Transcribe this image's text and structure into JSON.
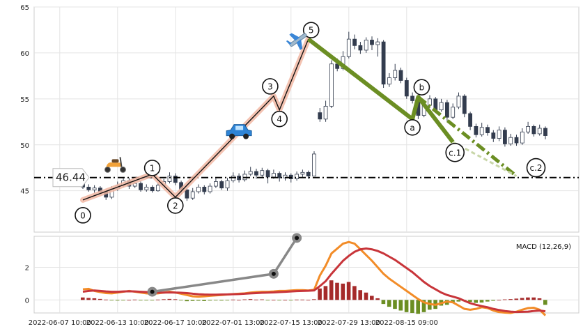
{
  "chart_data": {
    "type": "candlestick+macd",
    "main": {
      "ylim": [
        40.5,
        65
      ],
      "yticks": [
        45,
        50,
        55,
        60,
        65
      ],
      "price_line": 46.44,
      "price_label": "46.44",
      "candles": [
        [
          45.9,
          45.4,
          46.2,
          45.2
        ],
        [
          45.4,
          45.1,
          45.7,
          44.9
        ],
        [
          45.1,
          45.3,
          45.6,
          44.8
        ],
        [
          45.3,
          44.9,
          45.5,
          44.7
        ],
        [
          44.9,
          44.3,
          45.1,
          44.0
        ],
        [
          44.3,
          45.2,
          45.5,
          44.1
        ],
        [
          45.2,
          45.6,
          46.0,
          45.0
        ],
        [
          45.6,
          46.1,
          46.5,
          45.4
        ],
        [
          46.1,
          45.5,
          46.4,
          45.2
        ],
        [
          45.5,
          45.8,
          46.2,
          45.3
        ],
        [
          45.8,
          45.1,
          46.0,
          44.9
        ],
        [
          45.1,
          45.4,
          45.7,
          44.9
        ],
        [
          45.4,
          45.0,
          45.6,
          44.8
        ],
        [
          45.0,
          45.6,
          45.9,
          44.9
        ],
        [
          45.6,
          46.0,
          46.3,
          45.4
        ],
        [
          46.0,
          46.6,
          47.0,
          45.8
        ],
        [
          46.6,
          45.9,
          46.9,
          45.6
        ],
        [
          45.9,
          45.1,
          46.1,
          44.6
        ],
        [
          45.1,
          44.2,
          45.3,
          43.9
        ],
        [
          44.2,
          44.9,
          45.3,
          44.0
        ],
        [
          44.9,
          45.4,
          45.7,
          44.7
        ],
        [
          45.4,
          44.9,
          45.6,
          44.6
        ],
        [
          44.9,
          45.5,
          45.8,
          44.7
        ],
        [
          45.5,
          46.0,
          46.4,
          45.3
        ],
        [
          46.0,
          45.3,
          46.2,
          45.1
        ],
        [
          45.3,
          46.1,
          46.4,
          45.0
        ],
        [
          46.1,
          46.6,
          47.0,
          45.9
        ],
        [
          46.6,
          46.2,
          46.9,
          45.9
        ],
        [
          46.2,
          46.8,
          47.2,
          46.0
        ],
        [
          46.8,
          47.1,
          47.6,
          46.6
        ],
        [
          47.1,
          46.7,
          47.4,
          46.3
        ],
        [
          46.7,
          47.2,
          47.5,
          46.5
        ],
        [
          47.2,
          46.5,
          47.4,
          45.8
        ],
        [
          46.5,
          46.9,
          47.3,
          46.3
        ],
        [
          46.9,
          46.4,
          47.1,
          46.0
        ],
        [
          46.4,
          46.7,
          47.0,
          46.1
        ],
        [
          46.7,
          46.3,
          46.9,
          45.9
        ],
        [
          46.3,
          46.8,
          47.1,
          46.1
        ],
        [
          46.8,
          47.0,
          47.3,
          46.5
        ],
        [
          47.0,
          46.6,
          47.2,
          46.3
        ],
        [
          46.6,
          49.0,
          49.3,
          46.6
        ],
        [
          53.5,
          52.8,
          54.0,
          52.5
        ],
        [
          52.8,
          54.2,
          54.8,
          52.5
        ],
        [
          54.2,
          58.8,
          59.2,
          54.0
        ],
        [
          58.8,
          58.3,
          59.4,
          58.0
        ],
        [
          58.3,
          59.6,
          60.2,
          58.1
        ],
        [
          59.6,
          61.5,
          62.3,
          59.4
        ],
        [
          61.5,
          60.8,
          62.0,
          60.4
        ],
        [
          60.8,
          60.3,
          61.2,
          59.9
        ],
        [
          60.3,
          61.4,
          61.7,
          60.0
        ],
        [
          61.4,
          60.9,
          61.8,
          60.3
        ],
        [
          60.9,
          61.2,
          61.6,
          59.6
        ],
        [
          61.2,
          56.6,
          61.4,
          56.2
        ],
        [
          56.6,
          57.3,
          57.8,
          56.3
        ],
        [
          57.3,
          58.1,
          58.8,
          57.0
        ],
        [
          58.1,
          57.0,
          58.4,
          56.7
        ],
        [
          57.0,
          55.3,
          57.3,
          55.0
        ],
        [
          55.3,
          54.8,
          55.7,
          54.5
        ],
        [
          54.8,
          53.2,
          55.0,
          52.8
        ],
        [
          53.2,
          54.3,
          54.8,
          53.0
        ],
        [
          54.3,
          55.0,
          55.4,
          54.0
        ],
        [
          55.0,
          53.8,
          55.2,
          53.5
        ],
        [
          53.8,
          54.6,
          55.0,
          53.6
        ],
        [
          54.6,
          53.0,
          54.9,
          52.6
        ],
        [
          53.0,
          54.1,
          54.5,
          52.8
        ],
        [
          54.1,
          55.3,
          55.7,
          53.9
        ],
        [
          55.3,
          53.4,
          55.5,
          53.0
        ],
        [
          53.4,
          52.0,
          53.6,
          51.6
        ],
        [
          52.0,
          51.1,
          52.3,
          50.8
        ],
        [
          51.1,
          51.9,
          52.4,
          50.9
        ],
        [
          51.9,
          51.3,
          52.2,
          51.0
        ],
        [
          51.3,
          50.7,
          51.6,
          50.3
        ],
        [
          50.7,
          51.6,
          52.0,
          50.4
        ],
        [
          51.6,
          50.1,
          51.9,
          49.8
        ],
        [
          50.1,
          50.8,
          51.2,
          49.9
        ],
        [
          50.8,
          50.2,
          51.1,
          49.9
        ],
        [
          50.2,
          51.4,
          51.8,
          50.0
        ],
        [
          51.4,
          52.0,
          52.5,
          51.2
        ],
        [
          52.0,
          51.2,
          52.2,
          50.9
        ],
        [
          51.2,
          51.8,
          52.2,
          51.0
        ],
        [
          51.8,
          51.0,
          52.0,
          50.6
        ]
      ],
      "wave_pattern": {
        "points": [
          [
            0,
            44.0
          ],
          [
            12,
            46.8
          ],
          [
            16,
            44.3
          ],
          [
            33,
            55.3
          ],
          [
            34,
            53.8
          ],
          [
            39,
            61.5
          ],
          [
            57,
            52.8
          ],
          [
            58,
            55.2
          ],
          [
            64,
            50.3
          ],
          [
            75,
            46.6
          ]
        ],
        "labels": [
          "0",
          "1",
          "2",
          "3",
          "4",
          "5",
          "a",
          "b",
          "c.1",
          "c.2"
        ]
      },
      "icons": {
        "scooter": "scooter-emoji",
        "car": "car-emoji",
        "plane": "airplane-emoji"
      }
    },
    "macd": {
      "label": "MACD (12,26,9)",
      "ylim": [
        -0.8,
        3.9
      ],
      "yticks": [
        0,
        2
      ],
      "trend_line": [
        [
          12,
          0.5
        ],
        [
          33,
          1.6
        ],
        [
          37,
          3.8
        ]
      ],
      "hist": [
        0.15,
        0.12,
        0.1,
        0.06,
        0.02,
        -0.02,
        -0.04,
        -0.03,
        0.0,
        0.02,
        -0.02,
        -0.03,
        -0.01,
        0.02,
        0.04,
        0.06,
        0.04,
        -0.02,
        -0.08,
        -0.06,
        -0.05,
        -0.07,
        -0.04,
        -0.02,
        -0.04,
        -0.01,
        0.02,
        0.0,
        0.03,
        0.05,
        0.02,
        0.03,
        -0.01,
        0.01,
        -0.02,
        0.0,
        -0.02,
        0.02,
        0.02,
        0.01,
        0.04,
        0.7,
        0.85,
        1.2,
        1.05,
        1.0,
        1.1,
        0.85,
        0.6,
        0.45,
        0.25,
        0.1,
        -0.25,
        -0.42,
        -0.55,
        -0.65,
        -0.75,
        -0.8,
        -0.85,
        -0.75,
        -0.6,
        -0.55,
        -0.35,
        -0.3,
        -0.15,
        -0.1,
        -0.08,
        -0.12,
        -0.18,
        -0.16,
        -0.1,
        -0.05,
        0.0,
        0.03,
        0.05,
        0.08,
        0.12,
        0.15,
        0.15,
        0.1,
        -0.3
      ],
      "macd_line": [
        0.65,
        0.68,
        0.55,
        0.48,
        0.42,
        0.4,
        0.45,
        0.5,
        0.55,
        0.5,
        0.45,
        0.4,
        0.38,
        0.4,
        0.45,
        0.5,
        0.45,
        0.38,
        0.3,
        0.22,
        0.2,
        0.22,
        0.25,
        0.28,
        0.3,
        0.33,
        0.36,
        0.38,
        0.4,
        0.45,
        0.48,
        0.5,
        0.5,
        0.52,
        0.55,
        0.55,
        0.58,
        0.6,
        0.6,
        0.58,
        0.62,
        1.5,
        2.1,
        2.85,
        3.15,
        3.45,
        3.55,
        3.45,
        3.1,
        2.75,
        2.4,
        2.0,
        1.6,
        1.3,
        1.05,
        0.8,
        0.55,
        0.3,
        0.05,
        -0.15,
        -0.25,
        -0.3,
        -0.2,
        -0.1,
        -0.15,
        -0.35,
        -0.55,
        -0.6,
        -0.55,
        -0.45,
        -0.5,
        -0.65,
        -0.75,
        -0.78,
        -0.8,
        -0.72,
        -0.6,
        -0.5,
        -0.48,
        -0.6,
        -0.95
      ],
      "signal_line": [
        0.5,
        0.55,
        0.58,
        0.55,
        0.52,
        0.5,
        0.5,
        0.52,
        0.53,
        0.52,
        0.5,
        0.48,
        0.46,
        0.45,
        0.45,
        0.46,
        0.45,
        0.44,
        0.42,
        0.38,
        0.35,
        0.33,
        0.32,
        0.32,
        0.33,
        0.34,
        0.35,
        0.36,
        0.38,
        0.4,
        0.42,
        0.44,
        0.45,
        0.46,
        0.48,
        0.5,
        0.52,
        0.54,
        0.55,
        0.56,
        0.58,
        0.85,
        1.15,
        1.6,
        2.0,
        2.4,
        2.7,
        2.95,
        3.1,
        3.15,
        3.1,
        3.0,
        2.85,
        2.65,
        2.45,
        2.2,
        1.95,
        1.7,
        1.4,
        1.1,
        0.85,
        0.65,
        0.45,
        0.3,
        0.2,
        0.1,
        -0.05,
        -0.2,
        -0.3,
        -0.38,
        -0.45,
        -0.55,
        -0.62,
        -0.68,
        -0.72,
        -0.74,
        -0.73,
        -0.72,
        -0.68,
        -0.65,
        -0.7
      ]
    },
    "x_tick_labels": [
      "2022-06-07 10:00",
      "2022-06-13 10:00",
      "2022-06-17 10:00",
      "2022-07-01 13:00",
      "2022-07-15 13:00",
      "2022-07-29 13:00",
      "2022-08-15 09:00"
    ],
    "x_tick_index": [
      -4,
      6,
      16,
      26,
      36,
      46,
      56
    ],
    "colors": {
      "wave_up": "#f2b8a4",
      "wave_down": "#6b8e23",
      "dashed_proj": "#c8d6a8",
      "macd": "#f28c28",
      "signal": "#c8353a",
      "hist_pos": "#a52a2a",
      "hist_neg": "#6b8e23",
      "trend": "#888888",
      "candle_dark": "#333c4e"
    }
  }
}
